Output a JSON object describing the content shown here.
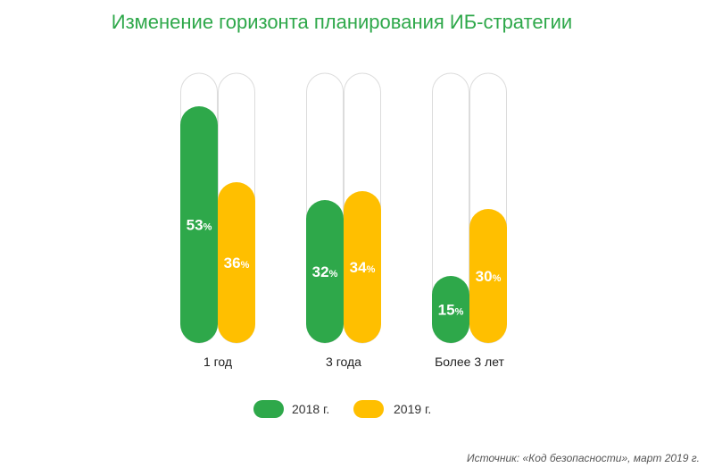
{
  "chart_data": {
    "type": "bar",
    "title": "Изменение горизонта планирования ИБ-стратегии",
    "categories": [
      "1 год",
      "3 года",
      "Более 3 лет"
    ],
    "series": [
      {
        "name": "2018 г.",
        "values": [
          53,
          32,
          15
        ],
        "labels": [
          "53",
          "32",
          "15"
        ],
        "color": "#2ea84a"
      },
      {
        "name": "2019 г.",
        "values": [
          36,
          34,
          30
        ],
        "labels": [
          "36",
          "34",
          "30"
        ],
        "color": "#ffbf00"
      }
    ],
    "value_suffix": "%",
    "ylim": [
      0,
      60
    ],
    "grid": false,
    "legend_placement": "bottom"
  },
  "source": "Источник: «Код безопасности», март 2019 г."
}
